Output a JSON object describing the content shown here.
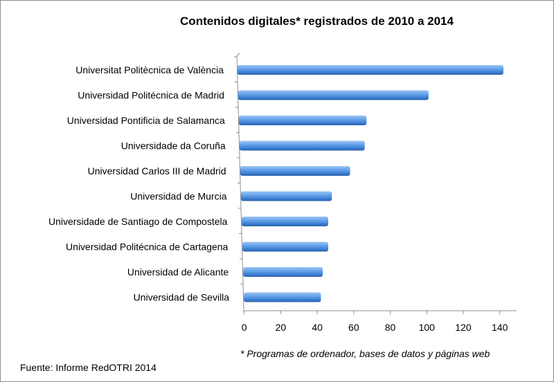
{
  "chart_data": {
    "type": "bar",
    "orientation": "horizontal",
    "style": "3d-cylinder",
    "title": "Contenidos digitales* registrados de 2010 a 2014",
    "categories": [
      "Universitat Politècnica de València",
      "Universidad Politécnica de Madrid",
      "Universidad Pontificia de Salamanca",
      "Universidade da Coruña",
      "Universidad Carlos III de Madrid",
      "Universidad de Murcia",
      "Universidade de Santiago  de Compostela",
      "Universidad Politécnica de Cartagena",
      "Universidad de Alicante",
      "Universidad de Sevilla"
    ],
    "values": [
      142,
      101,
      67,
      66,
      58,
      48,
      46,
      46,
      43,
      42
    ],
    "xlim": [
      0,
      140
    ],
    "xticks": [
      "0",
      "20",
      "40",
      "60",
      "80",
      "100",
      "120",
      "140"
    ],
    "grid": false,
    "bar_color": "#4f8fdc"
  },
  "footnote": "* Programas de ordenador, bases de datos y páginas web",
  "source": "Fuente: Informe RedOTRI 2014"
}
